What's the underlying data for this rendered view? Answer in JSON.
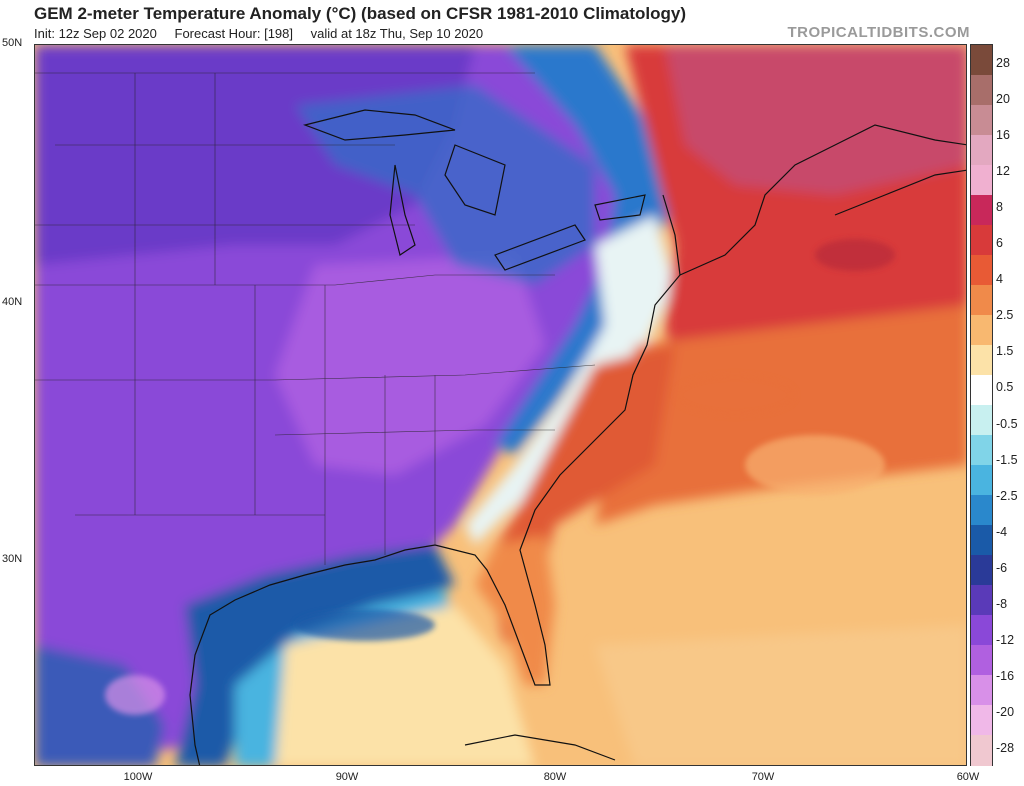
{
  "header": {
    "title": "GEM 2-meter Temperature Anomaly (°C) (based on CFSR 1981-2010 Climatology)",
    "init": "Init: 12z Sep 02 2020",
    "forecast_hour": "Forecast Hour: [198]",
    "valid": "valid at 18z Thu, Sep 10 2020",
    "watermark": "TROPICALTIDBITS.COM"
  },
  "map": {
    "lat_labels": [
      "50N",
      "40N",
      "30N"
    ],
    "lon_labels": [
      "100W",
      "90W",
      "80W",
      "70W",
      "60W"
    ],
    "extent": {
      "west": -105,
      "east": -60,
      "south": 22,
      "north": 50
    }
  },
  "colorbar": {
    "labels": [
      "28",
      "20",
      "16",
      "12",
      "8",
      "6",
      "4",
      "2.5",
      "1.5",
      "0.5",
      "-0.5",
      "-1.5",
      "-2.5",
      "-4",
      "-6",
      "-8",
      "-12",
      "-16",
      "-20",
      "-28"
    ],
    "colors": [
      "#7a4a3a",
      "#a86e6a",
      "#c88c94",
      "#e3a8c0",
      "#f0b0d0",
      "#c8285a",
      "#d83a3a",
      "#e85a35",
      "#f08a4a",
      "#f8b870",
      "#fce2a8",
      "#ffffff",
      "#c8f0f0",
      "#80d4e8",
      "#4ab4e0",
      "#2a88cc",
      "#1a5aa8",
      "#2a3a98",
      "#5a3ab8",
      "#8a48d8",
      "#b060e0",
      "#d890e8",
      "#f0b8e8",
      "#f0c8d0"
    ]
  }
}
